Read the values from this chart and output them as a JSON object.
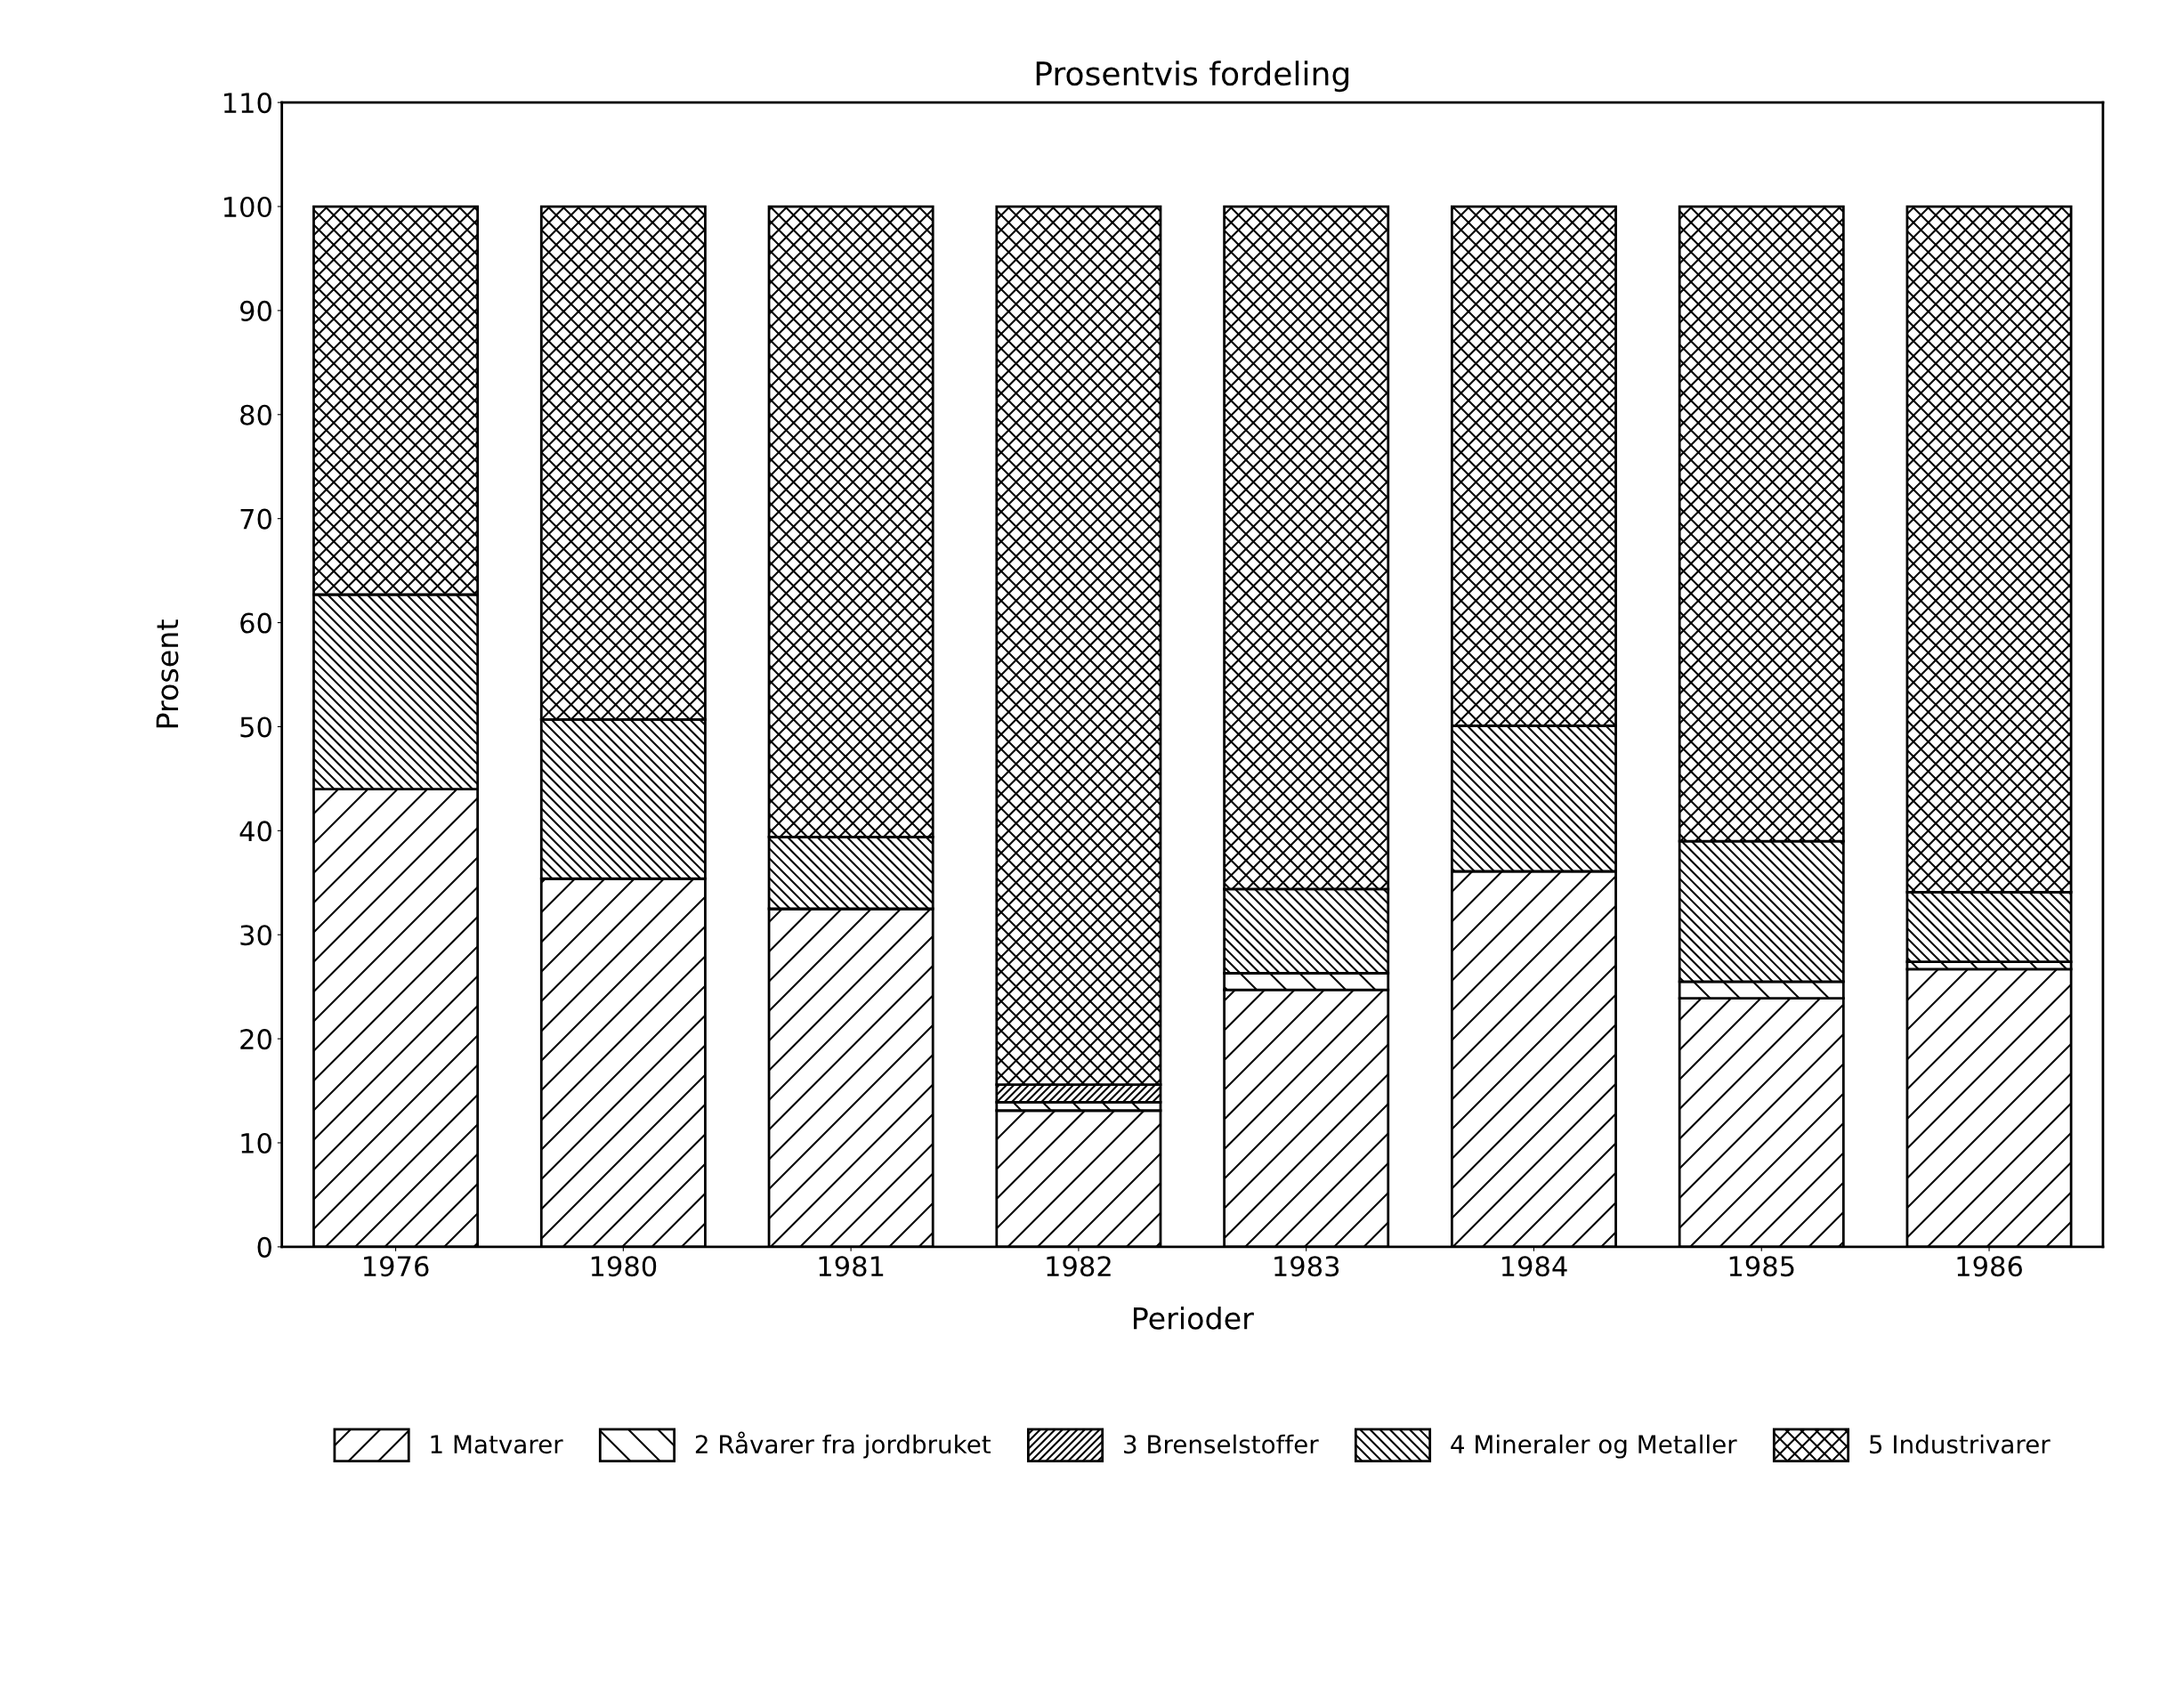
{
  "chart_data": {
    "type": "bar",
    "stacked": true,
    "title": "Prosentvis fordeling",
    "xlabel": "Perioder",
    "ylabel": "Prosent",
    "categories": [
      "1976",
      "1980",
      "1981",
      "1982",
      "1983",
      "1984",
      "1985",
      "1986"
    ],
    "series": [
      {
        "name": "1 Matvarer",
        "color": "#000000",
        "values": [
          44.0,
          35.4,
          32.5,
          13.1,
          24.7,
          36.1,
          23.9,
          26.7
        ]
      },
      {
        "name": "2 Råvarer fra jordbruket",
        "color": "#000000",
        "values": [
          0,
          0,
          0,
          0.8,
          1.6,
          0,
          1.6,
          0.7
        ]
      },
      {
        "name": "3 Brenselstoffer",
        "color": "#000000",
        "values": [
          0,
          0,
          0,
          1.7,
          0,
          0,
          0,
          0
        ]
      },
      {
        "name": "4 Mineraler og Metaller",
        "color": "#000000",
        "values": [
          18.7,
          15.3,
          6.9,
          0,
          8.1,
          14.0,
          13.5,
          6.7
        ]
      },
      {
        "name": "5 Industrivarer",
        "color": "#000000",
        "values": [
          37.3,
          49.3,
          60.6,
          84.4,
          65.6,
          49.9,
          61.0,
          65.9
        ]
      }
    ],
    "ylim": [
      0,
      110
    ],
    "yticks": [
      0,
      10,
      20,
      30,
      40,
      50,
      60,
      70,
      80,
      90,
      100,
      110
    ],
    "grid": false,
    "legend": "bottom"
  }
}
